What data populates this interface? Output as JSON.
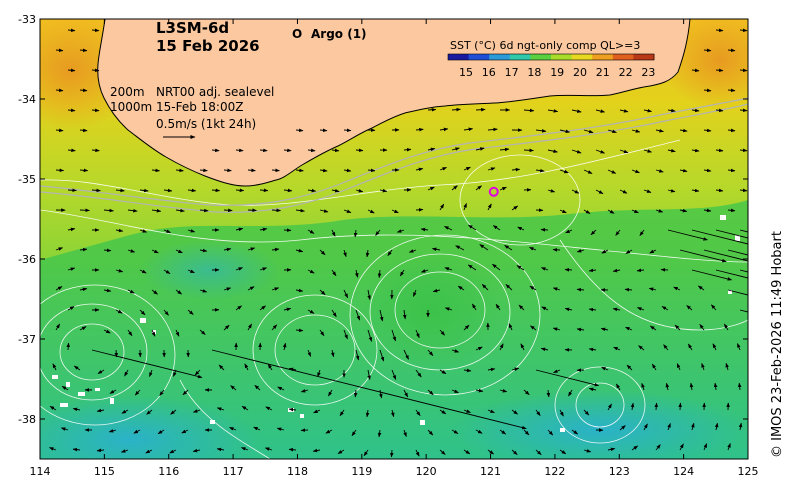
{
  "title": {
    "product": "L3SM-6d",
    "date": "15 Feb 2026"
  },
  "argo_legend": {
    "marker": "O",
    "label": "Argo (1)",
    "color": "#e000e0"
  },
  "info": {
    "line1_depth": "200m",
    "line1_text": "NRT00 adj. sealevel",
    "line2_depth": "1000m",
    "line2_text": "15-Feb 18:00Z",
    "scale_label": "0.5m/s (1kt 24h)"
  },
  "colorbar": {
    "title": "SST (°C) 6d ngt-only comp QL>=3",
    "ticks": [
      "15",
      "16",
      "17",
      "18",
      "19",
      "20",
      "21",
      "22",
      "23"
    ],
    "colors": [
      "#1a1aa0",
      "#1f4fd6",
      "#2a9ad8",
      "#2fc8a8",
      "#5ad040",
      "#a8dc28",
      "#e8d820",
      "#f0a020",
      "#e06020",
      "#b83818"
    ]
  },
  "axes": {
    "x_ticks": [
      "114",
      "115",
      "116",
      "117",
      "118",
      "119",
      "120",
      "121",
      "122",
      "123",
      "124",
      "125"
    ],
    "y_ticks": [
      "-33",
      "-34",
      "-35",
      "-36",
      "-37",
      "-38"
    ],
    "x_range": [
      114,
      125
    ],
    "y_range": [
      -33,
      -38.5
    ]
  },
  "argo_floats": [
    {
      "id": "1",
      "lon": 121.05,
      "lat": -35.16
    }
  ],
  "credit": "© IMOS 23-Feb-2026 11:49 Hobart",
  "colors": {
    "land": "#fbc8a0",
    "coast": "#000000",
    "contour": "#ffffff",
    "isobath": "#b0b0b0"
  }
}
